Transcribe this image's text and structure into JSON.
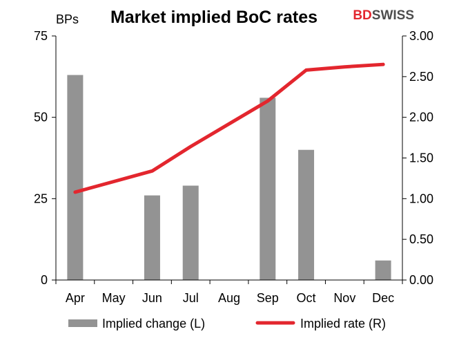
{
  "brand": {
    "part1": "BD",
    "part2": "SWISS",
    "color_red": "#e3262e",
    "color_grey": "#4d4d4d"
  },
  "chart_data": {
    "type": "bar",
    "title": "Market implied BoC rates",
    "left_axis_unit": "BPs",
    "categories": [
      "Apr",
      "May",
      "Jun",
      "Jul",
      "Aug",
      "Sep",
      "Oct",
      "Nov",
      "Dec"
    ],
    "y_left": {
      "min": 0,
      "max": 75,
      "ticks": [
        0,
        25,
        50,
        75
      ],
      "tick_labels": [
        "0",
        "25",
        "50",
        "75"
      ]
    },
    "y_right": {
      "min": 0,
      "max": 3.0,
      "ticks": [
        0,
        0.5,
        1.0,
        1.5,
        2.0,
        2.5,
        3.0
      ],
      "tick_labels": [
        "0.00",
        "0.50",
        "1.00",
        "1.50",
        "2.00",
        "2.50",
        "3.00"
      ]
    },
    "series": [
      {
        "name": "Implied change (L)",
        "type": "bar",
        "axis": "left",
        "color": "#939393",
        "values": [
          63,
          0,
          26,
          29,
          0,
          56,
          40,
          0,
          6
        ]
      },
      {
        "name": "Implied rate (R)",
        "type": "line",
        "axis": "right",
        "color": "#e3262e",
        "values": [
          1.08,
          1.21,
          1.34,
          1.64,
          1.92,
          2.2,
          2.58,
          2.62,
          2.65
        ]
      }
    ],
    "legend_position": "bottom",
    "grid": false
  }
}
